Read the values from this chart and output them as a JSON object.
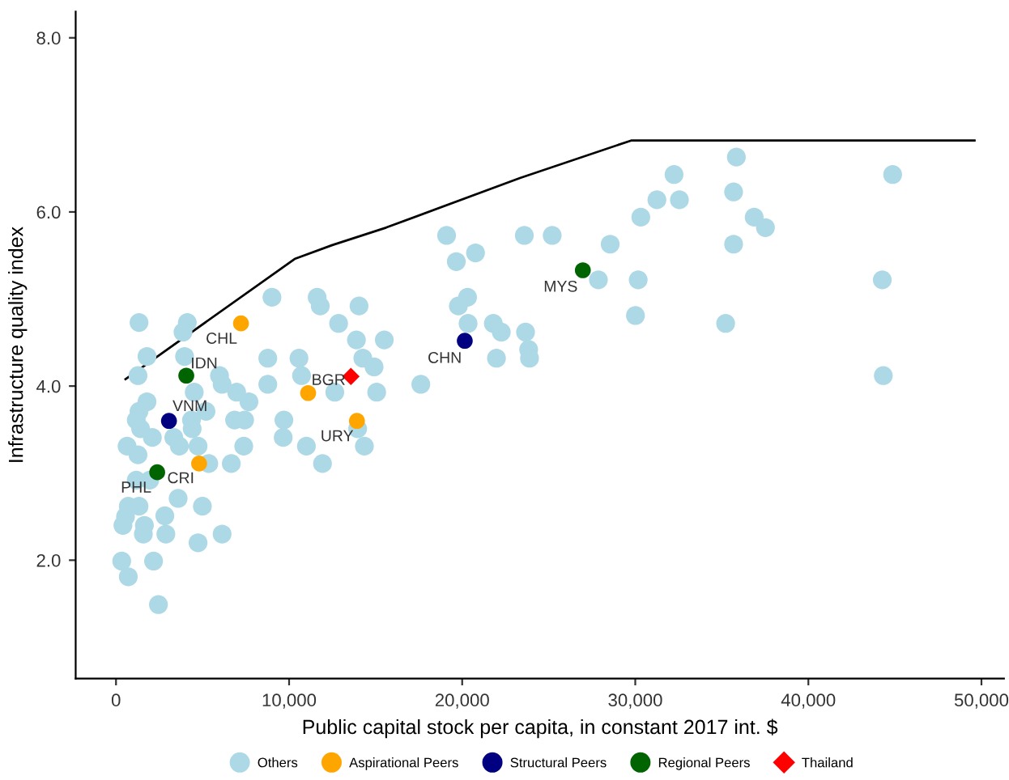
{
  "chart_data": {
    "type": "scatter",
    "xlabel": "Public capital stock per capita, in constant 2017 int. $",
    "ylabel": "Infrastructure quality index",
    "xlim": [
      -2330,
      51300
    ],
    "ylim": [
      0.64,
      8.3
    ],
    "xticks": [
      {
        "value": 0,
        "label": "0"
      },
      {
        "value": 10000,
        "label": "10,000"
      },
      {
        "value": 20000,
        "label": "20,000"
      },
      {
        "value": 30000,
        "label": "30,000"
      },
      {
        "value": 40000,
        "label": "40,000"
      },
      {
        "value": 50000,
        "label": "50,000"
      }
    ],
    "yticks": [
      {
        "value": 2,
        "label": "2.0"
      },
      {
        "value": 4,
        "label": "4.0"
      },
      {
        "value": 6,
        "label": "6.0"
      },
      {
        "value": 8,
        "label": "8.0"
      }
    ],
    "grid": false,
    "legend": "bottom",
    "series": [
      {
        "type": "line",
        "color": "#000000",
        "marker": "none",
        "line_style": "solid",
        "x": [
          550,
          10320,
          12500,
          15600,
          23340,
          29760,
          49600
        ],
        "values": [
          4.08,
          5.46,
          5.62,
          5.82,
          6.39,
          6.82,
          6.82
        ]
      },
      {
        "name": "Others",
        "color": "#add8e6",
        "marker": "circle",
        "x": [
          1330,
          4120,
          3870,
          9010,
          11620,
          11800,
          14040,
          12860,
          1790,
          3960,
          13890,
          15500,
          1270,
          8770,
          10570,
          14260,
          14910,
          5980,
          6130,
          10720,
          8770,
          12640,
          15060,
          17610,
          4520,
          6970,
          7680,
          1790,
          1330,
          5200,
          1170,
          6850,
          7430,
          4360,
          1420,
          4400,
          9700,
          2100,
          3340,
          9660,
          13960,
          640,
          3660,
          4740,
          7380,
          11000,
          14350,
          1270,
          5360,
          6660,
          11930,
          1170,
          1950,
          3590,
          710,
          1330,
          4990,
          550,
          2820,
          400,
          1640,
          1580,
          2880,
          6130,
          4740,
          330,
          2170,
          710,
          2450,
          19100,
          23590,
          19660,
          20770,
          19780,
          20310,
          20340,
          21800,
          22260,
          23660,
          21980,
          23840,
          23890,
          25200,
          28550,
          27870,
          30170,
          30010,
          30320,
          31250,
          32550,
          32240,
          35840,
          35680,
          36870,
          37520,
          35680,
          35220,
          44870,
          44270,
          44330
        ],
        "values": [
          4.73,
          4.73,
          4.62,
          5.02,
          5.02,
          4.92,
          4.92,
          4.72,
          4.34,
          4.34,
          4.53,
          4.53,
          4.12,
          4.32,
          4.32,
          4.32,
          4.22,
          4.12,
          4.02,
          4.12,
          4.02,
          3.93,
          3.93,
          4.02,
          3.93,
          3.93,
          3.82,
          3.82,
          3.71,
          3.71,
          3.61,
          3.61,
          3.61,
          3.61,
          3.51,
          3.51,
          3.61,
          3.41,
          3.41,
          3.41,
          3.51,
          3.31,
          3.31,
          3.31,
          3.31,
          3.31,
          3.31,
          3.21,
          3.11,
          3.11,
          3.11,
          2.92,
          2.92,
          2.71,
          2.62,
          2.62,
          2.62,
          2.5,
          2.51,
          2.4,
          2.4,
          2.3,
          2.3,
          2.3,
          2.2,
          1.99,
          1.99,
          1.81,
          1.49,
          5.73,
          5.73,
          5.43,
          5.53,
          4.92,
          5.02,
          4.72,
          4.72,
          4.62,
          4.62,
          4.32,
          4.42,
          4.32,
          5.73,
          5.63,
          5.22,
          5.22,
          4.81,
          5.94,
          6.14,
          6.14,
          6.43,
          6.63,
          6.23,
          5.94,
          5.82,
          5.63,
          4.72,
          6.43,
          5.22,
          4.12
        ]
      },
      {
        "name": "Aspirational Peers",
        "color": "#ffa500",
        "marker": "circle",
        "x": [
          7220,
          11100,
          13920,
          4800
        ],
        "values": [
          4.72,
          3.92,
          3.6,
          3.11
        ]
      },
      {
        "name": "Structural Peers",
        "color": "#000080",
        "marker": "circle",
        "x": [
          3060,
          20150
        ],
        "values": [
          3.6,
          4.52
        ]
      },
      {
        "name": "Regional Peers",
        "color": "#006400",
        "marker": "circle",
        "x": [
          4060,
          2380,
          26970
        ],
        "values": [
          4.12,
          3.01,
          5.33
        ]
      },
      {
        "name": "Thailand",
        "color": "#ff0000",
        "marker": "diamond",
        "x": [
          13570
        ],
        "values": [
          4.11
        ]
      }
    ],
    "annotations": [
      {
        "text": "CHL",
        "x": 7220,
        "y": 4.72
      },
      {
        "text": "IDN",
        "x": 4060,
        "y": 4.12
      },
      {
        "text": "BGR",
        "x": 11100,
        "y": 3.92
      },
      {
        "text": "VNM",
        "x": 3060,
        "y": 3.6
      },
      {
        "text": "URY",
        "x": 13920,
        "y": 3.6
      },
      {
        "text": "CRI",
        "x": 4800,
        "y": 3.11
      },
      {
        "text": "PHL",
        "x": 2380,
        "y": 3.01
      },
      {
        "text": "CHN",
        "x": 20150,
        "y": 4.52
      },
      {
        "text": "MYS",
        "x": 26970,
        "y": 5.33
      }
    ]
  }
}
